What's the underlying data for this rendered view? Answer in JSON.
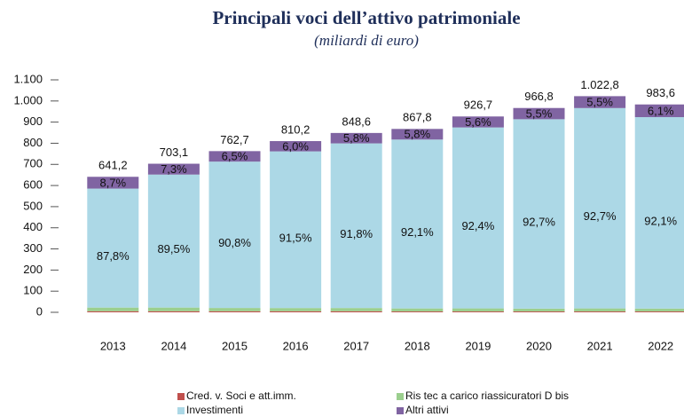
{
  "chart_data": {
    "type": "stacked_bar",
    "title": "Principali voci dell’attivo patrimoniale",
    "subtitle": "(miliardi di euro)",
    "categories": [
      "2013",
      "2014",
      "2015",
      "2016",
      "2017",
      "2018",
      "2019",
      "2020",
      "2021",
      "2022"
    ],
    "series": [
      {
        "name": "Cred. v. Soci e att.imm.",
        "color": "#c0504d",
        "values": [
          5.0,
          5.0,
          5.0,
          5.0,
          5.0,
          4.0,
          4.0,
          4.0,
          4.0,
          4.0
        ]
      },
      {
        "name": "Ris tec a carico riassicuratori D bis",
        "color": "#9bcf8e",
        "values": [
          17.4,
          17.5,
          15.6,
          15.3,
          15.4,
          14.3,
          14.5,
          13.4,
          14.4,
          13.7
        ]
      },
      {
        "name": "Investimenti",
        "color": "#acd8e6",
        "values": [
          563.0,
          629.3,
          692.5,
          741.3,
          779.0,
          799.2,
          856.3,
          896.2,
          948.1,
          905.9
        ],
        "share_labels": [
          "87,8%",
          "89,5%",
          "90,8%",
          "91,5%",
          "91,8%",
          "92,1%",
          "92,4%",
          "92,7%",
          "92,7%",
          "92,1%"
        ]
      },
      {
        "name": "Altri attivi",
        "color": "#8064a2",
        "values": [
          55.8,
          51.3,
          49.6,
          48.6,
          49.2,
          50.3,
          51.9,
          53.2,
          56.3,
          60.0
        ],
        "share_labels": [
          "8,7%",
          "7,3%",
          "6,5%",
          "6,0%",
          "5,8%",
          "5,8%",
          "5,6%",
          "5,5%",
          "5,5%",
          "6,1%"
        ]
      }
    ],
    "totals": [
      641.2,
      703.1,
      762.7,
      810.2,
      848.6,
      867.8,
      926.7,
      966.8,
      1022.8,
      983.6
    ],
    "total_labels": [
      "641,2",
      "703,1",
      "762,7",
      "810,2",
      "848,6",
      "867,8",
      "926,7",
      "966,8",
      "1.022,8",
      "983,6"
    ],
    "ylim": [
      0,
      1100
    ],
    "yticks": [
      0,
      100,
      200,
      300,
      400,
      500,
      600,
      700,
      800,
      900,
      {
        "value": 1000,
        "label": "1.000"
      },
      {
        "value": 1100,
        "label": "1.100"
      }
    ]
  }
}
